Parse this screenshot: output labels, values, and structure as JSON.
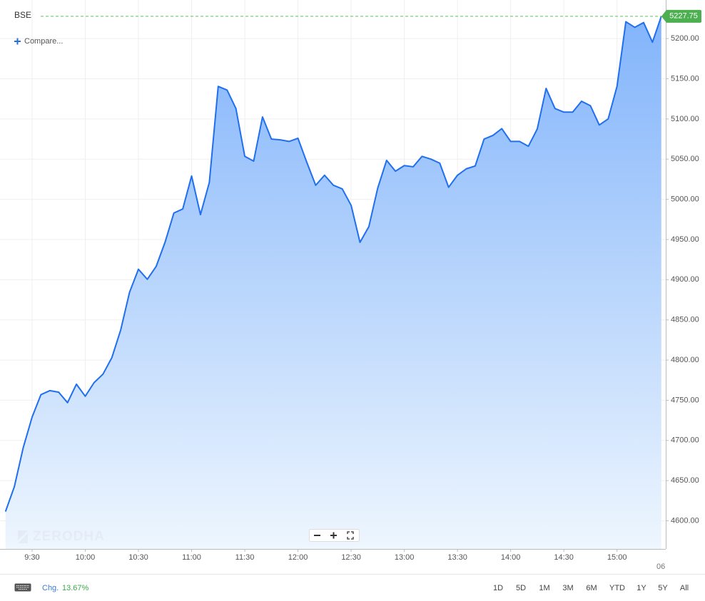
{
  "chart_data": {
    "type": "area",
    "title": "BSE",
    "categories": [
      null,
      null,
      null,
      "9:30",
      null,
      null,
      null,
      null,
      null,
      "10:00",
      null,
      null,
      null,
      null,
      null,
      "10:30",
      null,
      null,
      null,
      null,
      null,
      "11:00",
      null,
      null,
      null,
      null,
      null,
      "11:30",
      null,
      null,
      null,
      null,
      null,
      "12:00",
      null,
      null,
      null,
      null,
      null,
      "12:30",
      null,
      null,
      null,
      null,
      null,
      "13:00",
      null,
      null,
      null,
      null,
      null,
      "13:30",
      null,
      null,
      null,
      null,
      null,
      "14:00",
      null,
      null,
      null,
      null,
      null,
      "14:30",
      null,
      null,
      null,
      null,
      null,
      "15:00",
      null,
      null,
      null,
      null,
      null
    ],
    "values": [
      4611.5,
      4642.5,
      4691,
      4729,
      4757,
      4762,
      4760,
      4747,
      4770,
      4755,
      4772,
      4782.5,
      4803,
      4837.5,
      4884.5,
      4913,
      4900.5,
      4916.5,
      4946.5,
      4983,
      4988,
      5029,
      4981,
      5021,
      5140.5,
      5136,
      5113,
      5053.5,
      5047.5,
      5102.5,
      5075,
      5074,
      5072,
      5076,
      5046,
      5017.5,
      5030,
      5017.5,
      5013,
      4992.5,
      4946.5,
      4966,
      5014,
      5048.5,
      5035,
      5042,
      5040.5,
      5053.5,
      5050,
      5045,
      5015,
      5030,
      5038,
      5041.5,
      5075,
      5079.5,
      5088,
      5072,
      5072,
      5066,
      5087.5,
      5138,
      5113,
      5108.5,
      5108.5,
      5122,
      5116.5,
      5092.5,
      5100,
      5140.5,
      5221,
      5214,
      5220,
      5195.5,
      5227.75
    ],
    "color": "#1f6fee",
    "ylim": [
      4565,
      5248
    ],
    "yticks": [
      {
        "value": 4600,
        "label": "4600.00"
      },
      {
        "value": 4650,
        "label": "4650.00"
      },
      {
        "value": 4700,
        "label": "4700.00"
      },
      {
        "value": 4750,
        "label": "4750.00"
      },
      {
        "value": 4800,
        "label": "4800.00"
      },
      {
        "value": 4850,
        "label": "4850.00"
      },
      {
        "value": 4900,
        "label": "4900.00"
      },
      {
        "value": 4950,
        "label": "4950.00"
      },
      {
        "value": 5000,
        "label": "5000.00"
      },
      {
        "value": 5050,
        "label": "5050.00"
      },
      {
        "value": 5100,
        "label": "5100.00"
      },
      {
        "value": 5150,
        "label": "5150.00"
      },
      {
        "value": 5200,
        "label": "5200.00"
      }
    ],
    "grid": true
  },
  "ui": {
    "compare": "Compare...",
    "watermark": "ZERODHA",
    "date_fragment": "06",
    "change_label": "Chg.",
    "change_value": "13.67%",
    "ranges": [
      "1D",
      "5D",
      "1M",
      "3M",
      "6M",
      "YTD",
      "1Y",
      "5Y",
      "All"
    ]
  }
}
